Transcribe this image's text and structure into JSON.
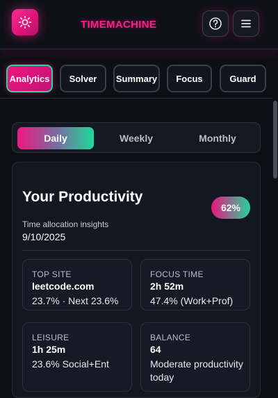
{
  "header": {
    "title": "TIMEMACHINE",
    "logo_icon": "sun-icon",
    "help_icon": "question-circle-icon",
    "menu_icon": "hamburger-menu-icon",
    "accent_color": "#ff1f8b"
  },
  "tabs": [
    {
      "label": "Analytics",
      "active": true
    },
    {
      "label": "Solver",
      "active": false
    },
    {
      "label": "Summary",
      "active": false
    },
    {
      "label": "Focus",
      "active": false
    },
    {
      "label": "Guard",
      "active": false
    }
  ],
  "period": {
    "options": [
      "Daily",
      "Weekly",
      "Monthly"
    ],
    "selected": "Daily"
  },
  "productivity": {
    "title": "Your Productivity",
    "percent_label": "62%",
    "subtitle": "Time allocation insights",
    "date": "9/10/2025",
    "stats": [
      {
        "label": "TOP SITE",
        "value": "leetcode.com",
        "detail": "23.7% · Next 23.6%"
      },
      {
        "label": "FOCUS TIME",
        "value": "2h 52m",
        "detail": "47.4% (Work+Prof)"
      },
      {
        "label": "LEISURE",
        "value": "1h 25m",
        "detail": "23.6% Social+Ent"
      },
      {
        "label": "BALANCE",
        "value": "64",
        "detail": "Moderate productivity today"
      }
    ]
  },
  "theme": {
    "pink": "#f0157f",
    "green": "#25d39b",
    "background": "#0d0f15"
  }
}
